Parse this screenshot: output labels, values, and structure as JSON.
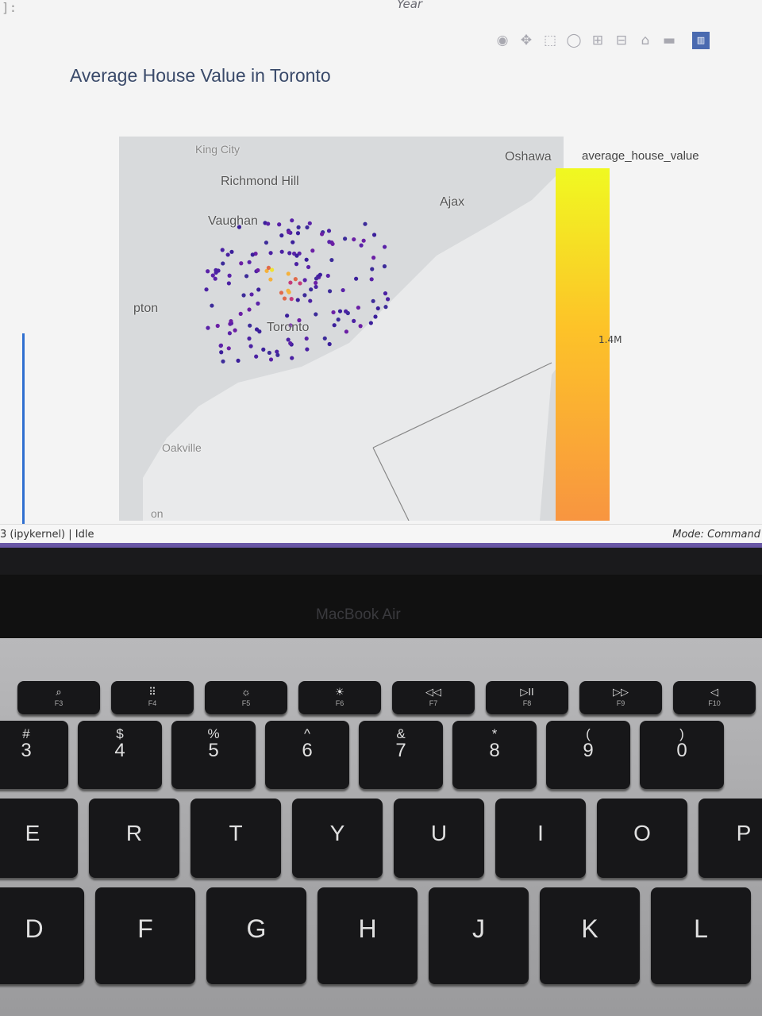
{
  "notebook": {
    "cell_prompt": "]:",
    "top_label": "Year",
    "plot_title": "Average House Value in Toronto",
    "status_left": "3 (ipykernel) | Idle",
    "status_right": "Mode: Command"
  },
  "toolbar": {
    "icons": [
      "camera-icon",
      "pan-icon",
      "box-select-icon",
      "lasso-icon",
      "zoom-in-icon",
      "zoom-out-icon",
      "home-icon",
      "reset-icon",
      "plotly-logo-icon"
    ]
  },
  "map": {
    "labels": {
      "king_city": "King City",
      "richmond_hill": "Richmond Hill",
      "vaughan": "Vaughan",
      "oshawa": "Oshawa",
      "ajax": "Ajax",
      "brampton": "pton",
      "toronto": "Toronto",
      "oakville": "Oakville",
      "milton": "on"
    }
  },
  "colorbar": {
    "title": "average_house_value",
    "tick": "1.4M",
    "colors": [
      "#f0f921",
      "#fdc328",
      "#f89540"
    ]
  },
  "chart_data": {
    "type": "scatter",
    "title": "Average House Value in Toronto",
    "colorbar_title": "average_house_value",
    "colorbar_ticks": [
      "1.4M"
    ],
    "note_points": "Neighbourhood points clustered around central Toronto, coloured by average house value (mostly low values in purple, a few higher values in orange/yellow)."
  },
  "bezel": {
    "label": "MacBook Air"
  },
  "keyboard": {
    "fn_row": [
      {
        "glyph": "⌕",
        "sub": "F3"
      },
      {
        "glyph": "⠿",
        "sub": "F4"
      },
      {
        "glyph": "☼",
        "sub": "F5"
      },
      {
        "glyph": "☀",
        "sub": "F6"
      },
      {
        "glyph": "◁◁",
        "sub": "F7"
      },
      {
        "glyph": "▷II",
        "sub": "F8"
      },
      {
        "glyph": "▷▷",
        "sub": "F9"
      },
      {
        "glyph": "◁",
        "sub": "F10"
      }
    ],
    "num_row": [
      {
        "top": "#",
        "bottom": "3"
      },
      {
        "top": "$",
        "bottom": "4"
      },
      {
        "top": "%",
        "bottom": "5"
      },
      {
        "top": "^",
        "bottom": "6"
      },
      {
        "top": "&",
        "bottom": "7"
      },
      {
        "top": "*",
        "bottom": "8"
      },
      {
        "top": "(",
        "bottom": "9"
      },
      {
        "top": ")",
        "bottom": "0"
      }
    ],
    "qwerty_row": [
      "E",
      "R",
      "T",
      "Y",
      "U",
      "I",
      "O",
      "P"
    ],
    "home_row": [
      "D",
      "F",
      "G",
      "H",
      "J",
      "K",
      "L"
    ]
  }
}
